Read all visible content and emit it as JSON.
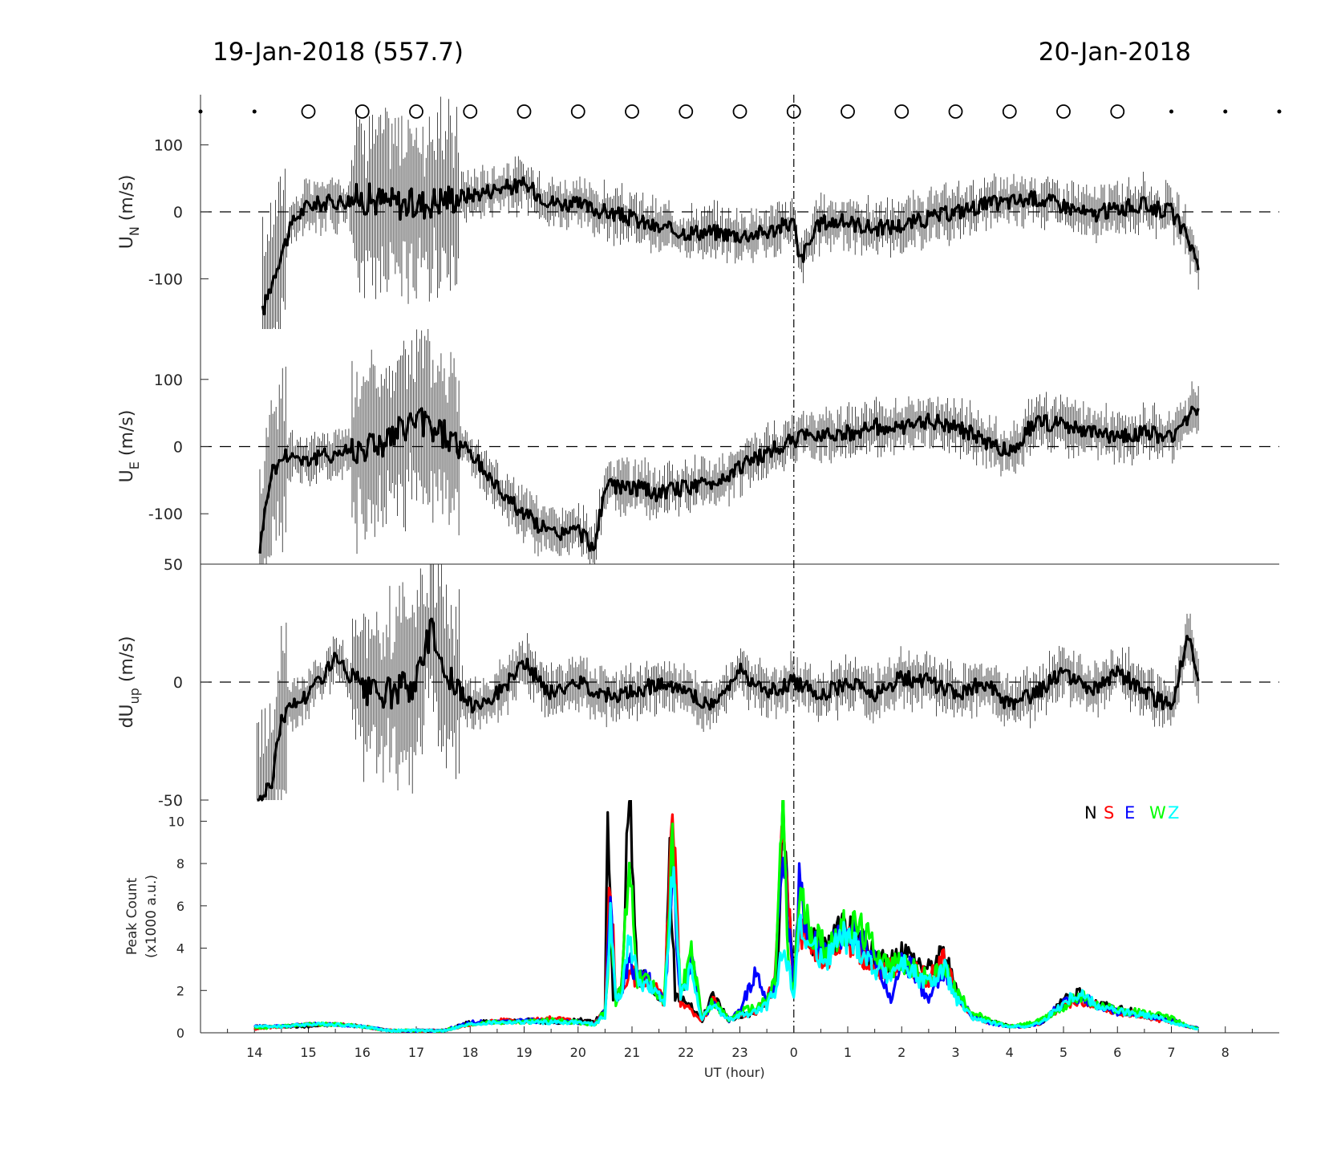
{
  "titles": {
    "left": "19-Jan-2018 (557.7)",
    "right": "20-Jan-2018"
  },
  "colors": {
    "N": "#000000",
    "S": "#ff0000",
    "E": "#0000ff",
    "W": "#00ff00",
    "Z": "#00ffff"
  },
  "chart_data": [
    {
      "type": "line",
      "panel": "un",
      "ylabel": "U_N (m/s)",
      "ylim": [
        -175,
        175
      ],
      "yticks": [
        100,
        0,
        -100
      ],
      "xlim": [
        13,
        33
      ],
      "series": [
        {
          "x": [
            14.15,
            14.5,
            14.75,
            15,
            15.5,
            16,
            16.5,
            17,
            17.5,
            18,
            18.5,
            19,
            19.5,
            20,
            20.5,
            21,
            21.5,
            22,
            22.5,
            23,
            23.5,
            24.0,
            24.1,
            24.5,
            25,
            25.5,
            26,
            26.5,
            27,
            27.5,
            28,
            28.5,
            29,
            29.5,
            30,
            30.5,
            31,
            31.3,
            31.5
          ],
          "y": [
            -150,
            -60,
            -10,
            10,
            15,
            20,
            15,
            10,
            20,
            25,
            35,
            40,
            15,
            10,
            0,
            -10,
            -25,
            -30,
            -30,
            -35,
            -30,
            -15,
            -75,
            -15,
            -15,
            -25,
            -20,
            -10,
            0,
            10,
            15,
            20,
            10,
            -5,
            5,
            10,
            0,
            -40,
            -75
          ]
        }
      ],
      "extra_marks": [
        "circles-top-row"
      ]
    },
    {
      "type": "line",
      "panel": "ue",
      "ylabel": "U_E (m/s)",
      "ylim": [
        -175,
        175
      ],
      "yticks": [
        100,
        0,
        -100
      ],
      "series": [
        {
          "x": [
            14.1,
            14.3,
            14.6,
            15,
            15.5,
            16,
            16.5,
            17,
            17.5,
            18,
            18.5,
            19,
            19.5,
            20,
            20.3,
            20.5,
            21,
            21.5,
            22,
            22.5,
            23,
            23.5,
            24,
            24.5,
            25,
            25.5,
            26,
            26.5,
            27,
            27.5,
            28,
            28.5,
            29,
            29.5,
            30,
            30.5,
            31,
            31.5
          ],
          "y": [
            -150,
            -40,
            -10,
            -20,
            -10,
            0,
            10,
            40,
            20,
            -10,
            -60,
            -100,
            -130,
            -125,
            -150,
            -60,
            -60,
            -70,
            -60,
            -55,
            -30,
            -10,
            10,
            20,
            20,
            30,
            25,
            40,
            30,
            10,
            -10,
            40,
            30,
            20,
            15,
            20,
            15,
            60
          ]
        }
      ]
    },
    {
      "type": "line",
      "panel": "dup",
      "ylabel": "dU_up (m/s)",
      "ylim": [
        -50,
        50
      ],
      "yticks": [
        50,
        0,
        -50
      ],
      "series": [
        {
          "x": [
            14.05,
            14.3,
            14.5,
            14.7,
            15,
            15.5,
            16,
            16.5,
            17,
            17.3,
            17.5,
            18,
            18.5,
            19,
            19.5,
            20,
            20.5,
            21,
            21.5,
            22,
            22.5,
            23,
            23.5,
            24,
            24.5,
            25,
            25.5,
            26,
            26.5,
            27,
            27.5,
            28,
            28.5,
            29,
            29.5,
            30,
            30.5,
            31,
            31.3,
            31.5
          ],
          "y": [
            -50,
            -45,
            -15,
            -10,
            -5,
            10,
            -5,
            -5,
            0,
            25,
            5,
            -10,
            -5,
            8,
            -5,
            0,
            -5,
            -5,
            0,
            -5,
            -10,
            5,
            -5,
            0,
            -5,
            0,
            -5,
            2,
            0,
            -5,
            0,
            -10,
            -5,
            5,
            -5,
            5,
            -5,
            -10,
            20,
            0
          ]
        }
      ]
    },
    {
      "type": "line",
      "panel": "peaks",
      "ylabel": "Peak Count",
      "ylabel2": "(x1000 a.u.)",
      "xlabel": "UT (hour)",
      "ylim": [
        0,
        11
      ],
      "yticks": [
        10,
        8,
        6,
        4,
        2,
        0
      ],
      "xticks": [
        "14",
        "15",
        "16",
        "17",
        "18",
        "19",
        "20",
        "21",
        "22",
        "23",
        "0",
        "1",
        "2",
        "3",
        "4",
        "5",
        "6",
        "7",
        "8"
      ],
      "xtick_values": [
        14,
        15,
        16,
        17,
        18,
        19,
        20,
        21,
        22,
        23,
        24,
        25,
        26,
        27,
        28,
        29,
        30,
        31,
        32
      ],
      "legend": [
        "N",
        "S",
        "E",
        "W",
        "Z"
      ],
      "legend_position": "top-right",
      "series": [
        {
          "name": "N",
          "x": [
            14,
            14.5,
            15,
            15.5,
            16,
            16.5,
            17,
            17.5,
            18,
            18.5,
            19,
            19.5,
            20,
            20.3,
            20.5,
            20.55,
            20.65,
            20.8,
            20.95,
            21.1,
            21.3,
            21.6,
            21.7,
            21.8,
            22,
            22.3,
            22.5,
            22.8,
            23,
            23.3,
            23.5,
            23.7,
            23.8,
            24.0,
            24.1,
            24.3,
            24.6,
            24.9,
            25.2,
            25.5,
            25.8,
            26,
            26.2,
            26.5,
            26.8,
            27,
            27.3,
            27.6,
            28,
            28.3,
            28.6,
            29,
            29.3,
            29.6,
            30,
            30.3,
            30.6,
            31,
            31.3,
            31.5
          ],
          "y": [
            0.3,
            0.3,
            0.3,
            0.4,
            0.3,
            0.1,
            0.1,
            0.1,
            0.5,
            0.5,
            0.6,
            0.5,
            0.6,
            0.5,
            1.0,
            11,
            1.5,
            2.0,
            11,
            2.5,
            2.5,
            1.5,
            8,
            1.8,
            1.5,
            0.6,
            1.8,
            0.6,
            0.8,
            1.0,
            1.5,
            2.5,
            11,
            2.0,
            6.0,
            4.5,
            4.0,
            5.0,
            4.5,
            3.5,
            3.2,
            4.0,
            3.5,
            3.0,
            3.8,
            2.0,
            0.8,
            0.6,
            0.3,
            0.3,
            0.5,
            1.5,
            1.8,
            1.4,
            1.1,
            1.0,
            0.8,
            0.6,
            0.3,
            0.2
          ]
        },
        {
          "name": "S",
          "x": [
            14,
            14.5,
            15,
            15.5,
            16,
            16.5,
            17,
            17.5,
            18,
            18.5,
            19,
            19.5,
            20,
            20.3,
            20.5,
            20.6,
            20.7,
            20.8,
            20.95,
            21.1,
            21.3,
            21.6,
            21.75,
            21.9,
            22.1,
            22.3,
            22.5,
            22.8,
            23,
            23.3,
            23.5,
            23.65,
            23.8,
            24.0,
            24.1,
            24.3,
            24.6,
            24.9,
            25.2,
            25.5,
            25.8,
            26,
            26.2,
            26.5,
            26.8,
            27,
            27.3,
            27.6,
            28,
            28.3,
            28.6,
            29,
            29.3,
            29.6,
            30,
            30.3,
            30.6,
            31,
            31.3,
            31.5
          ],
          "y": [
            0.2,
            0.3,
            0.4,
            0.4,
            0.3,
            0.1,
            0.1,
            0.1,
            0.4,
            0.6,
            0.5,
            0.7,
            0.5,
            0.4,
            1.0,
            7.5,
            1.5,
            2.0,
            3.0,
            2.5,
            2.5,
            1.5,
            10.5,
            1.5,
            1.0,
            0.6,
            1.5,
            0.6,
            0.8,
            1.0,
            1.5,
            2.5,
            11,
            2.0,
            5.0,
            4.0,
            3.5,
            4.5,
            4.0,
            3.0,
            3.0,
            3.5,
            3.0,
            2.5,
            3.5,
            1.8,
            0.8,
            0.5,
            0.3,
            0.3,
            0.5,
            1.3,
            1.6,
            1.3,
            1.0,
            0.9,
            0.7,
            0.5,
            0.3,
            0.2
          ]
        },
        {
          "name": "E",
          "x": [
            14,
            14.5,
            15,
            15.5,
            16,
            16.5,
            17,
            17.5,
            18,
            18.5,
            19,
            19.5,
            20,
            20.3,
            20.5,
            20.6,
            20.7,
            20.8,
            20.95,
            21.1,
            21.3,
            21.6,
            21.75,
            21.9,
            22.1,
            22.3,
            22.5,
            22.8,
            23,
            23.3,
            23.5,
            23.65,
            23.8,
            24.0,
            24.1,
            24.3,
            24.6,
            24.9,
            25.2,
            25.5,
            25.8,
            26,
            26.2,
            26.5,
            26.8,
            27,
            27.3,
            27.6,
            28,
            28.3,
            28.6,
            29,
            29.3,
            29.6,
            30,
            30.3,
            30.6,
            31,
            31.3,
            31.5
          ],
          "y": [
            0.3,
            0.3,
            0.4,
            0.4,
            0.3,
            0.1,
            0.1,
            0.1,
            0.5,
            0.5,
            0.6,
            0.5,
            0.5,
            0.4,
            1.0,
            6.0,
            1.5,
            2.0,
            3.5,
            2.5,
            2.5,
            1.5,
            7.5,
            1.8,
            3.5,
            0.6,
            1.5,
            0.6,
            1.0,
            3.0,
            1.5,
            2.5,
            8.5,
            2.0,
            7.0,
            4.5,
            4.0,
            4.8,
            4.5,
            3.5,
            1.5,
            3.5,
            3.0,
            1.5,
            3.0,
            2.0,
            0.8,
            0.5,
            0.3,
            0.3,
            0.5,
            1.5,
            1.7,
            1.4,
            1.0,
            0.9,
            0.8,
            0.6,
            0.3,
            0.2
          ]
        },
        {
          "name": "W",
          "x": [
            14,
            14.5,
            15,
            15.5,
            16,
            16.5,
            17,
            17.5,
            18,
            18.5,
            19,
            19.5,
            20,
            20.3,
            20.5,
            20.6,
            20.7,
            20.8,
            20.95,
            21.1,
            21.3,
            21.6,
            21.75,
            21.9,
            22.1,
            22.3,
            22.5,
            22.8,
            23,
            23.3,
            23.5,
            23.65,
            23.8,
            23.9,
            24.0,
            24.1,
            24.3,
            24.6,
            24.9,
            25.2,
            25.5,
            25.8,
            26,
            26.2,
            26.5,
            26.8,
            27,
            27.3,
            27.6,
            28,
            28.3,
            28.6,
            29,
            29.3,
            29.6,
            30,
            30.3,
            30.6,
            31,
            31.3,
            31.5
          ],
          "y": [
            0.2,
            0.3,
            0.4,
            0.4,
            0.3,
            0.1,
            0.1,
            0.1,
            0.4,
            0.5,
            0.5,
            0.6,
            0.5,
            0.4,
            1.0,
            5.0,
            1.5,
            2.0,
            8.5,
            2.5,
            2.5,
            1.5,
            8.8,
            1.8,
            4.0,
            0.6,
            1.5,
            0.6,
            1.0,
            1.2,
            1.5,
            2.5,
            11,
            3.0,
            2.0,
            6.5,
            5.0,
            4.0,
            5.0,
            5.0,
            4.0,
            3.0,
            3.5,
            3.0,
            2.5,
            3.0,
            2.0,
            1.0,
            0.6,
            0.3,
            0.4,
            0.6,
            1.2,
            1.8,
            1.3,
            1.1,
            1.0,
            0.9,
            0.7,
            0.3,
            0.2
          ]
        },
        {
          "name": "Z",
          "x": [
            14,
            14.5,
            15,
            15.5,
            16,
            16.5,
            17,
            17.5,
            18,
            18.5,
            19,
            19.5,
            20,
            20.3,
            20.5,
            20.6,
            20.7,
            20.8,
            20.95,
            21.1,
            21.3,
            21.6,
            21.75,
            21.9,
            22.1,
            22.3,
            22.5,
            22.8,
            23,
            23.3,
            23.5,
            23.65,
            23.8,
            24.0,
            24.1,
            24.3,
            24.6,
            24.9,
            25.2,
            25.5,
            25.8,
            26,
            26.2,
            26.5,
            26.8,
            27,
            27.3,
            27.6,
            28,
            28.3,
            28.6,
            29,
            29.3,
            29.6,
            30,
            30.3,
            30.6,
            31,
            31.3,
            31.5
          ],
          "y": [
            0.3,
            0.3,
            0.4,
            0.4,
            0.3,
            0.1,
            0.1,
            0.1,
            0.4,
            0.5,
            0.5,
            0.5,
            0.5,
            0.4,
            0.8,
            5.5,
            1.5,
            2.0,
            4.5,
            2.5,
            2.2,
            1.4,
            8.3,
            1.6,
            3.0,
            0.6,
            1.3,
            0.6,
            0.8,
            1.0,
            1.3,
            2.0,
            4.0,
            2.0,
            5.0,
            4.0,
            3.5,
            4.5,
            4.0,
            3.0,
            2.8,
            3.3,
            2.8,
            2.3,
            3.0,
            1.6,
            0.7,
            0.5,
            0.3,
            0.3,
            0.5,
            1.4,
            1.9,
            1.3,
            1.0,
            0.9,
            0.8,
            0.5,
            0.3,
            0.2
          ]
        }
      ]
    }
  ]
}
